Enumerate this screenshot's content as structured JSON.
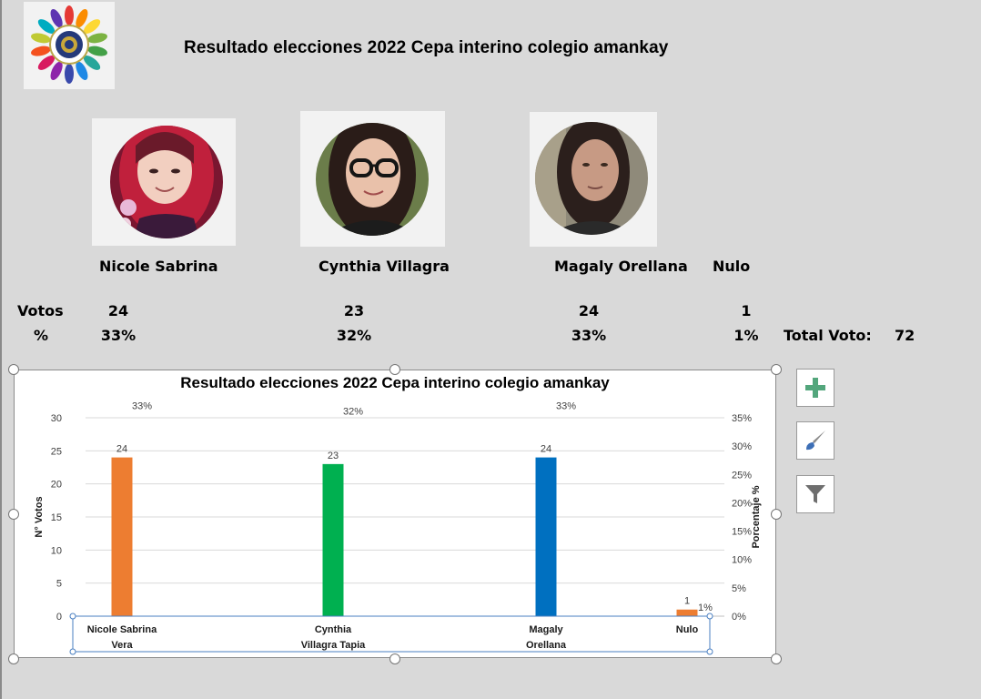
{
  "sheet_title": "Resultado elecciones 2022 Cepa interino colegio amankay",
  "candidates": [
    {
      "name": "Nicole Sabrina",
      "votes": "24",
      "percent": "33%"
    },
    {
      "name": "Cynthia Villagra",
      "votes": "23",
      "percent": "32%"
    },
    {
      "name": "Magaly Orellana",
      "votes": "24",
      "percent": "33%"
    },
    {
      "name": "Nulo",
      "votes": "1",
      "percent": "1%"
    }
  ],
  "row_labels": {
    "votes": "Votos",
    "percent": "%"
  },
  "total": {
    "label": "Total Voto:",
    "value": "72"
  },
  "icons": {
    "add": "plus-icon",
    "style": "paintbrush-icon",
    "filter": "funnel-icon"
  },
  "colors": {
    "nicole": "#ed7d31",
    "cynthia": "#00b050",
    "magaly": "#0070c0",
    "nulo": "#ed7d31",
    "add_icon": "#53a67c",
    "style_icon": "#3d6fb6"
  },
  "chart_data": {
    "type": "bar",
    "title": "Resultado elecciones 2022 Cepa interino colegio amankay",
    "categories": [
      "Nicole Sabrina Vera",
      "Cynthia Villagra Tapia",
      "Magaly Orellana",
      "Nulo"
    ],
    "category_lines": [
      [
        "Nicole Sabrina",
        "Vera"
      ],
      [
        "Cynthia",
        "Villagra Tapia"
      ],
      [
        "Magaly",
        "Orellana"
      ],
      [
        "Nulo",
        ""
      ]
    ],
    "values": [
      24,
      23,
      24,
      1
    ],
    "percent_labels": [
      "33%",
      "32%",
      "33%",
      "1%"
    ],
    "percent_values": [
      33,
      32,
      33,
      1
    ],
    "bar_colors": [
      "#ed7d31",
      "#00b050",
      "#0070c0",
      "#ed7d31"
    ],
    "ylabel": "N° Votos",
    "y2label": "Porcentaje %",
    "ylim": [
      0,
      30
    ],
    "yticks": [
      "0",
      "5",
      "10",
      "15",
      "20",
      "25",
      "30"
    ],
    "y2lim": [
      0,
      35
    ],
    "y2ticks": [
      "0%",
      "5%",
      "10%",
      "15%",
      "20%",
      "25%",
      "30%",
      "35%"
    ],
    "grid": true
  }
}
